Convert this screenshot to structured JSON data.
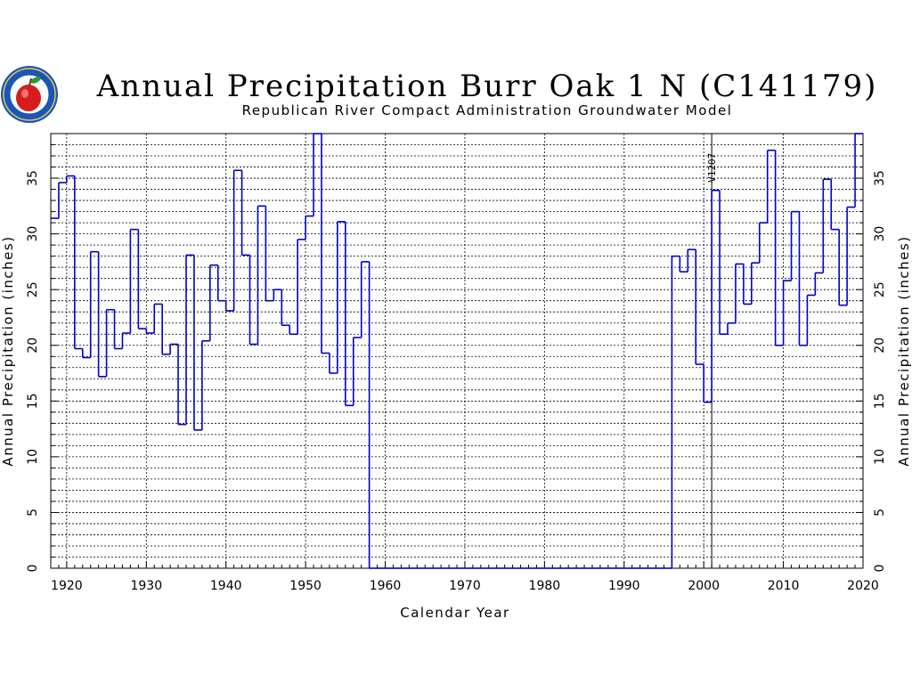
{
  "logo": {
    "text": "REPUBLICAN RIVER COMPACT ADMINISTRATION"
  },
  "chart_data": {
    "type": "line",
    "step": true,
    "title": "Annual Precipitation Burr Oak 1 N (C141179)",
    "subtitle": "Republican River Compact Administration Groundwater Model",
    "xlabel": "Calendar Year",
    "ylabel": "Annual Precipitation (inches)",
    "y2label": "Annual Precipitation (inches)",
    "xlim": [
      1918,
      2020
    ],
    "ylim": [
      0,
      39
    ],
    "xticks": [
      1920,
      1930,
      1940,
      1950,
      1960,
      1970,
      1980,
      1990,
      2000,
      2010,
      2020
    ],
    "yticks": [
      0,
      5,
      10,
      15,
      20,
      25,
      30,
      35
    ],
    "grid": true,
    "vline": {
      "x": 2001,
      "label": "V1207"
    },
    "series": [
      {
        "color": "#0000cc",
        "x": [
          1918,
          1919,
          1920,
          1921,
          1922,
          1923,
          1924,
          1925,
          1926,
          1927,
          1928,
          1929,
          1930,
          1931,
          1932,
          1933,
          1934,
          1935,
          1936,
          1937,
          1938,
          1939,
          1940,
          1941,
          1942,
          1943,
          1944,
          1945,
          1946,
          1947,
          1948,
          1949,
          1950,
          1951,
          1952,
          1953,
          1954,
          1955,
          1956,
          1957,
          1958,
          1959,
          1960,
          1961,
          1962,
          1963,
          1964,
          1965,
          1966,
          1967,
          1968,
          1969,
          1970,
          1971,
          1972,
          1973,
          1974,
          1975,
          1976,
          1977,
          1978,
          1979,
          1980,
          1981,
          1982,
          1983,
          1984,
          1985,
          1986,
          1987,
          1988,
          1989,
          1990,
          1991,
          1992,
          1993,
          1994,
          1995,
          1996,
          1997,
          1998,
          1999,
          2000,
          2001,
          2002,
          2003,
          2004,
          2005,
          2006,
          2007,
          2008,
          2009,
          2010,
          2011,
          2012,
          2013,
          2014,
          2015,
          2016,
          2017,
          2018,
          2019
        ],
        "values": [
          31.4,
          34.6,
          35.2,
          19.7,
          18.9,
          28.4,
          17.2,
          23.2,
          19.7,
          21.1,
          30.4,
          21.5,
          21.1,
          23.7,
          19.2,
          20.1,
          12.9,
          28.1,
          12.4,
          20.4,
          27.2,
          24.0,
          23.1,
          35.7,
          28.1,
          20.1,
          32.5,
          24.0,
          25.0,
          21.8,
          21.0,
          29.5,
          31.6,
          39.0,
          19.3,
          17.5,
          31.1,
          14.6,
          20.7,
          27.5,
          0,
          0,
          0,
          0,
          0,
          0,
          0,
          0,
          0,
          0,
          0,
          0,
          0,
          0,
          0,
          0,
          0,
          0,
          0,
          0,
          0,
          0,
          0,
          0,
          0,
          0,
          0,
          0,
          0,
          0,
          0,
          0,
          0,
          0,
          0,
          0,
          0,
          0,
          28.0,
          26.6,
          28.6,
          18.3,
          14.9,
          33.9,
          21.0,
          22.0,
          27.3,
          23.7,
          27.4,
          31.0,
          37.5,
          20.0,
          25.8,
          32.0,
          20.0,
          24.5,
          26.5,
          34.9,
          30.4,
          23.6,
          32.4,
          39.0
        ]
      }
    ]
  }
}
